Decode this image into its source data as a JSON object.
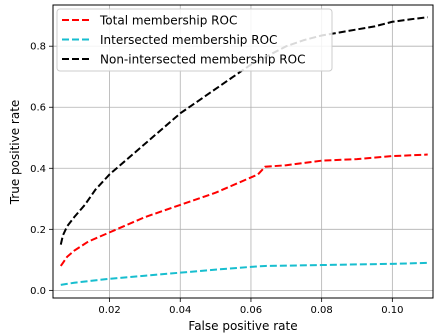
{
  "chart_data": {
    "type": "line",
    "xlabel": "False positive rate",
    "ylabel": "True positive rate",
    "xlim": [
      0.004,
      0.1115
    ],
    "ylim": [
      -0.025,
      0.935
    ],
    "xticks": [
      0.02,
      0.04,
      0.06,
      0.08,
      0.1
    ],
    "xtick_labels": [
      "0.02",
      "0.04",
      "0.06",
      "0.08",
      "0.10"
    ],
    "yticks": [
      0.0,
      0.2,
      0.4,
      0.6,
      0.8
    ],
    "ytick_labels": [
      "0.0",
      "0.2",
      "0.4",
      "0.6",
      "0.8"
    ],
    "grid": true,
    "legend_position": "top-left",
    "series": [
      {
        "name": "Total membership ROC",
        "color": "#ff0000",
        "style": "dashed",
        "x": [
          0.0062,
          0.0068,
          0.008,
          0.01,
          0.014,
          0.02,
          0.03,
          0.04,
          0.05,
          0.06,
          0.062,
          0.064,
          0.07,
          0.08,
          0.09,
          0.1,
          0.11
        ],
        "y": [
          0.08,
          0.09,
          0.11,
          0.13,
          0.16,
          0.19,
          0.24,
          0.28,
          0.32,
          0.37,
          0.38,
          0.405,
          0.41,
          0.425,
          0.43,
          0.44,
          0.445
        ]
      },
      {
        "name": "Intersected membership ROC",
        "color": "#17becf",
        "style": "dashed",
        "x": [
          0.0062,
          0.01,
          0.02,
          0.03,
          0.04,
          0.05,
          0.06,
          0.064,
          0.07,
          0.08,
          0.09,
          0.1,
          0.11
        ],
        "y": [
          0.018,
          0.025,
          0.038,
          0.048,
          0.058,
          0.068,
          0.077,
          0.08,
          0.081,
          0.083,
          0.085,
          0.087,
          0.09
        ]
      },
      {
        "name": "Non-intersected membership ROC",
        "color": "#000000",
        "style": "dashed",
        "x": [
          0.0062,
          0.0068,
          0.008,
          0.01,
          0.013,
          0.016,
          0.02,
          0.025,
          0.03,
          0.035,
          0.04,
          0.045,
          0.05,
          0.055,
          0.06,
          0.065,
          0.07,
          0.075,
          0.08,
          0.085,
          0.09,
          0.095,
          0.1,
          0.105,
          0.11
        ],
        "y": [
          0.15,
          0.18,
          0.21,
          0.24,
          0.28,
          0.33,
          0.38,
          0.43,
          0.48,
          0.53,
          0.58,
          0.62,
          0.66,
          0.7,
          0.74,
          0.77,
          0.8,
          0.82,
          0.835,
          0.845,
          0.855,
          0.865,
          0.88,
          0.888,
          0.895
        ]
      }
    ]
  }
}
